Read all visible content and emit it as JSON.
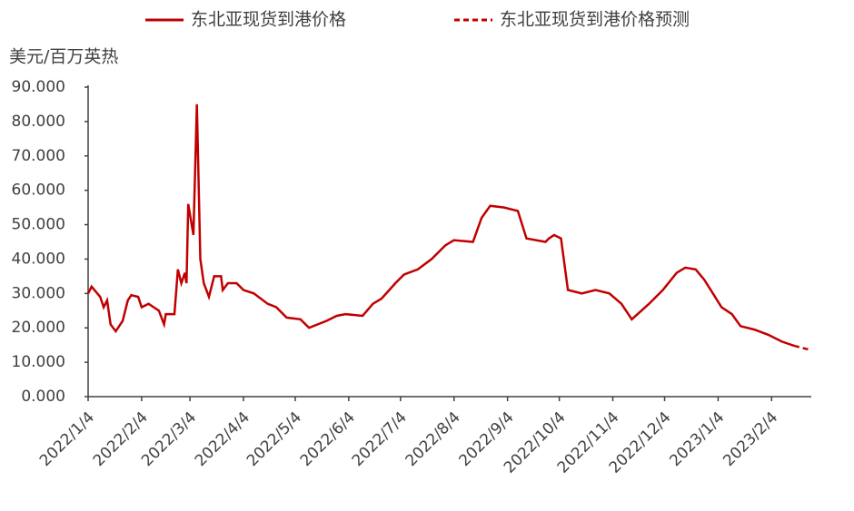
{
  "chart_data": {
    "type": "line",
    "y_label": "美元/百万英热",
    "xlim": [
      "2022/1/4",
      "2023/2/27"
    ],
    "xticks": [
      "2022/1/4",
      "2022/2/4",
      "2022/3/4",
      "2022/4/4",
      "2022/5/4",
      "2022/6/4",
      "2022/7/4",
      "2022/8/4",
      "2022/9/4",
      "2022/10/4",
      "2022/11/4",
      "2022/12/4",
      "2023/1/4",
      "2023/2/4"
    ],
    "ylim": [
      0,
      90
    ],
    "yticks": [
      {
        "value": 0,
        "label": "0.000"
      },
      {
        "value": 10,
        "label": "10.000"
      },
      {
        "value": 20,
        "label": "20.000"
      },
      {
        "value": 30,
        "label": "30.000"
      },
      {
        "value": 40,
        "label": "40.000"
      },
      {
        "value": 50,
        "label": "50.000"
      },
      {
        "value": 60,
        "label": "60.000"
      },
      {
        "value": 70,
        "label": "70.000"
      },
      {
        "value": 80,
        "label": "80.000"
      },
      {
        "value": 90,
        "label": "90.000"
      }
    ],
    "legend": "top",
    "series": [
      {
        "name": "东北亚现货到港价格",
        "color": "#c00000",
        "dash": false,
        "x": [
          "2022/1/4",
          "2022/1/6",
          "2022/1/11",
          "2022/1/13",
          "2022/1/15",
          "2022/1/17",
          "2022/1/20",
          "2022/1/24",
          "2022/1/27",
          "2022/1/29",
          "2022/2/2",
          "2022/2/4",
          "2022/2/8",
          "2022/2/11",
          "2022/2/14",
          "2022/2/17",
          "2022/2/18",
          "2022/2/23",
          "2022/2/25",
          "2022/2/27",
          "2022/3/1",
          "2022/3/2",
          "2022/3/3",
          "2022/3/6",
          "2022/3/8",
          "2022/3/10",
          "2022/3/12",
          "2022/3/15",
          "2022/3/18",
          "2022/3/22",
          "2022/3/23",
          "2022/3/26",
          "2022/3/31",
          "2022/4/4",
          "2022/4/10",
          "2022/4/18",
          "2022/4/23",
          "2022/4/29",
          "2022/5/7",
          "2022/5/12",
          "2022/5/17",
          "2022/5/22",
          "2022/5/28",
          "2022/6/2",
          "2022/6/12",
          "2022/6/18",
          "2022/6/23",
          "2022/7/1",
          "2022/7/6",
          "2022/7/14",
          "2022/7/22",
          "2022/7/30",
          "2022/8/4",
          "2022/8/15",
          "2022/8/20",
          "2022/8/25",
          "2022/9/2",
          "2022/9/10",
          "2022/9/15",
          "2022/9/26",
          "2022/9/28",
          "2022/10/1",
          "2022/10/5",
          "2022/10/9",
          "2022/10/17",
          "2022/10/25",
          "2022/11/2",
          "2022/11/9",
          "2022/11/15",
          "2022/11/25",
          "2022/12/3",
          "2022/12/11",
          "2022/12/16",
          "2022/12/22",
          "2022/12/27",
          "2023/1/1",
          "2023/1/6",
          "2023/1/12",
          "2023/1/17",
          "2023/1/25",
          "2023/2/2",
          "2023/2/10",
          "2023/2/17"
        ],
        "values": [
          30,
          32,
          29,
          26,
          28,
          21,
          19,
          22,
          28,
          29.5,
          29,
          26,
          27,
          26,
          25,
          21,
          24,
          24,
          37,
          33,
          36,
          33,
          56,
          47,
          85,
          40,
          33,
          29,
          35,
          35,
          31,
          33,
          33,
          31,
          30,
          27,
          26,
          23,
          22.5,
          20,
          21,
          22,
          23.5,
          24,
          23.5,
          27,
          28.5,
          33,
          35.5,
          37,
          40,
          44,
          45.5,
          45,
          52,
          55.5,
          55,
          54,
          46,
          45,
          46,
          47,
          46,
          31,
          30,
          31,
          30,
          27,
          22.5,
          27,
          31,
          36,
          37.5,
          37,
          34,
          30,
          26,
          24,
          20.5,
          19.5,
          18,
          16,
          14.8
        ]
      },
      {
        "name": "东北亚现货到港价格预测",
        "color": "#c00000",
        "dash": true,
        "x": [
          "2023/2/17",
          "2023/2/27"
        ],
        "values": [
          14.8,
          13.5
        ]
      }
    ]
  }
}
